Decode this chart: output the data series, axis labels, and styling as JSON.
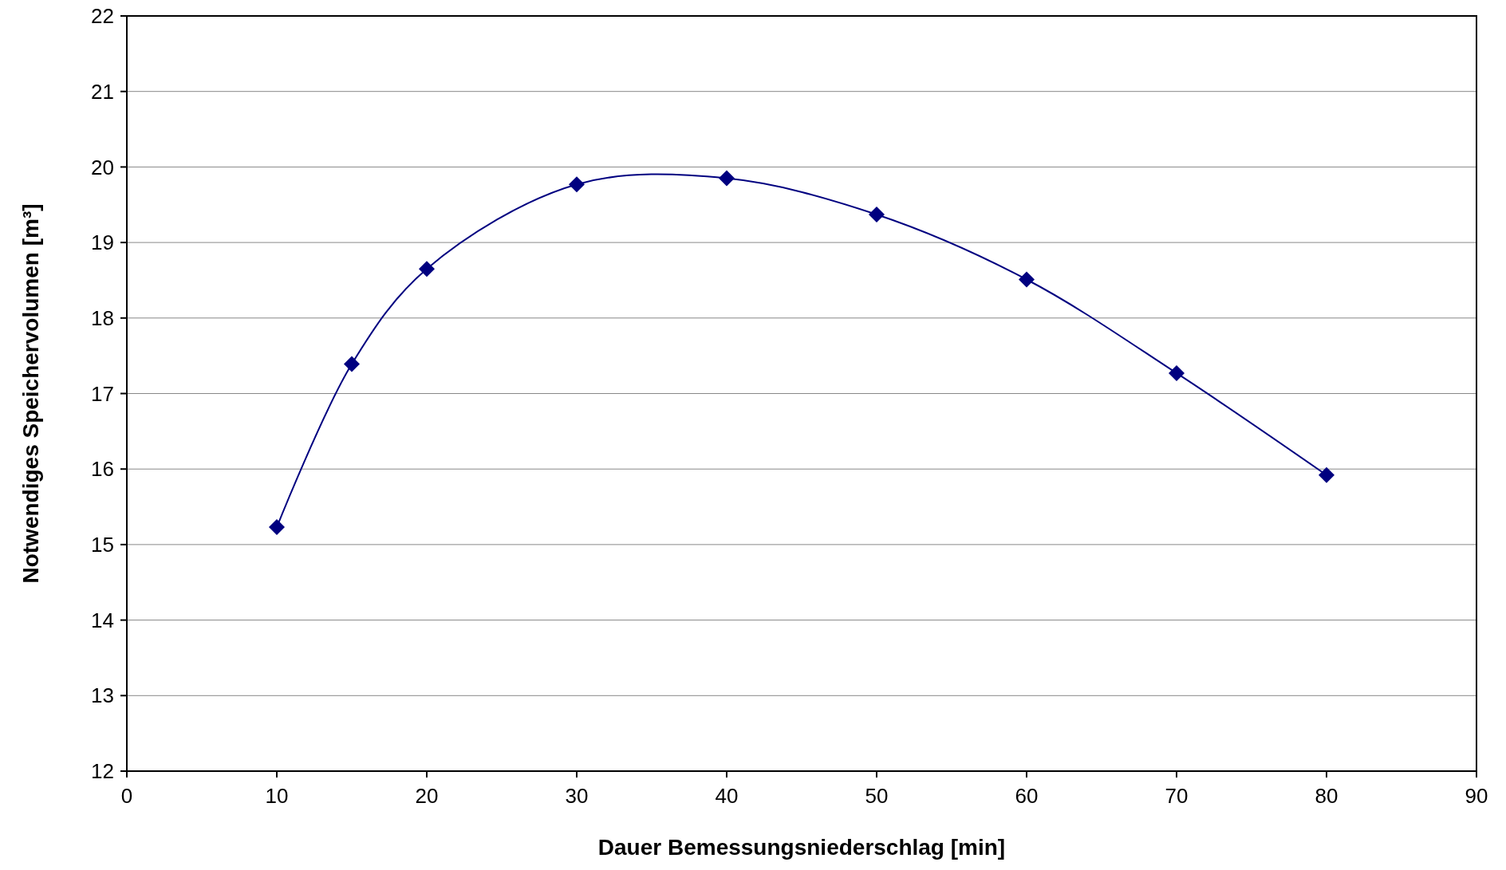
{
  "chart_data": {
    "type": "line",
    "xlabel": "Dauer Bemessungsniederschlag [min]",
    "ylabel": "Notwendiges Speichervolumen [m³]",
    "x": [
      10,
      15,
      20,
      30,
      40,
      50,
      60,
      70,
      80
    ],
    "series": [
      {
        "color": "#000080",
        "values": [
          15.23,
          17.39,
          18.65,
          19.77,
          19.85,
          19.37,
          18.51,
          17.27,
          15.92
        ]
      }
    ],
    "xlim": [
      0,
      90
    ],
    "xticks": [
      0,
      10,
      20,
      30,
      40,
      50,
      60,
      70,
      80,
      90
    ],
    "ylim": [
      12,
      22
    ],
    "yticks": [
      12,
      13,
      14,
      15,
      16,
      17,
      18,
      19,
      20,
      21,
      22
    ],
    "grid": "y",
    "marker": "diamond",
    "line_style": "solid"
  }
}
